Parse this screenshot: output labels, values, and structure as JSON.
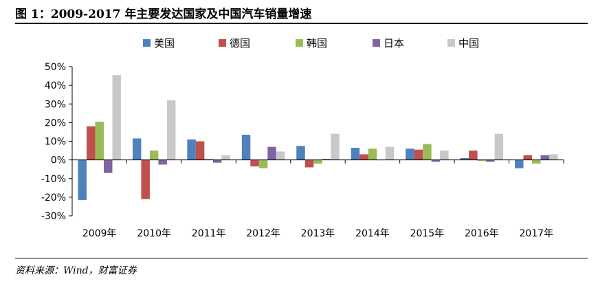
{
  "figure": {
    "title": "图 1：2009-2017 年主要发达国家及中国汽车销量增速",
    "source": "资料来源：Wind，财富证券"
  },
  "chart_data": {
    "type": "bar",
    "title": "",
    "xlabel": "",
    "ylabel": "",
    "categories": [
      "2009年",
      "2010年",
      "2011年",
      "2012年",
      "2013年",
      "2014年",
      "2015年",
      "2016年",
      "2017年"
    ],
    "ylim": [
      -0.3,
      0.5
    ],
    "yticks": [
      -0.3,
      -0.2,
      -0.1,
      0.0,
      0.1,
      0.2,
      0.3,
      0.4,
      0.5
    ],
    "ytick_labels": [
      "-30%",
      "-20%",
      "-10%",
      "0%",
      "10%",
      "20%",
      "30%",
      "40%",
      "50%"
    ],
    "grid": false,
    "legend_position": "top",
    "series": [
      {
        "name": "美国",
        "color": "#4F81BD",
        "values": [
          -0.215,
          0.115,
          0.11,
          0.135,
          0.075,
          0.065,
          0.06,
          0.01,
          -0.045
        ]
      },
      {
        "name": "德国",
        "color": "#C0504D",
        "values": [
          0.18,
          -0.21,
          0.1,
          -0.035,
          -0.04,
          0.03,
          0.055,
          0.05,
          0.025
        ]
      },
      {
        "name": "韩国",
        "color": "#9BBB59",
        "values": [
          0.205,
          0.05,
          0.005,
          -0.045,
          -0.02,
          0.06,
          0.085,
          -0.005,
          -0.02
        ]
      },
      {
        "name": "日本",
        "color": "#8064A2",
        "values": [
          -0.07,
          -0.025,
          -0.015,
          0.07,
          0.005,
          0.0,
          -0.01,
          -0.01,
          0.025
        ]
      },
      {
        "name": "中国",
        "color": "#C8C8C8",
        "values": [
          0.455,
          0.32,
          0.025,
          0.045,
          0.14,
          0.07,
          0.05,
          0.14,
          0.03
        ]
      }
    ]
  }
}
